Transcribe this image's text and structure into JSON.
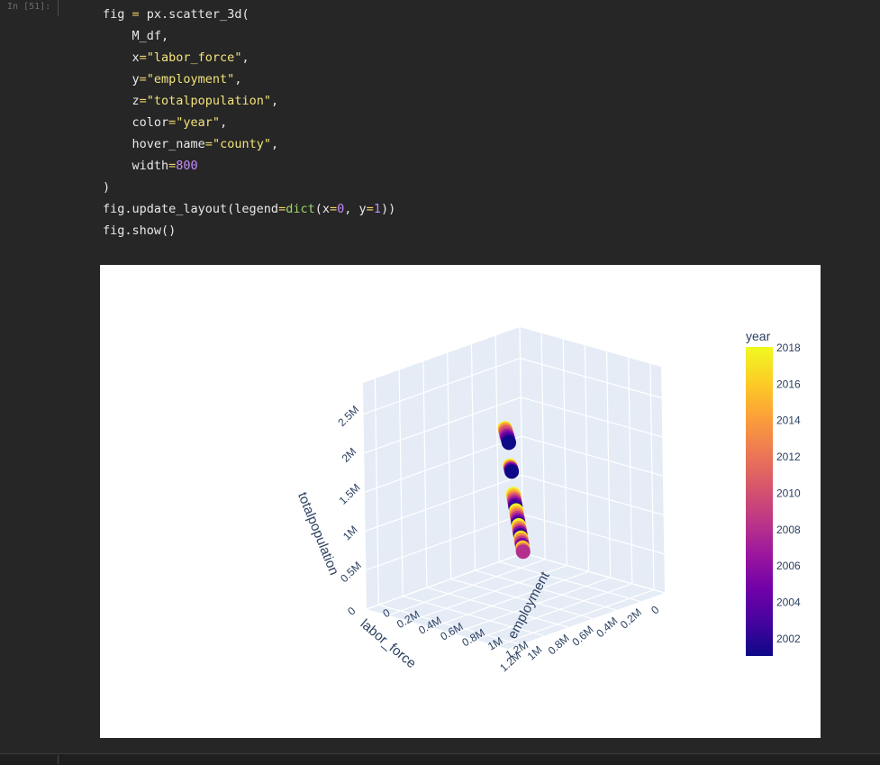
{
  "cell": {
    "prompt": "In [51]:",
    "code_lines": [
      [
        {
          "t": "fig ",
          "c": "kw"
        },
        {
          "t": "=",
          "c": "op"
        },
        {
          "t": " px.scatter_3d(",
          "c": "kw"
        }
      ],
      [
        {
          "t": "    M_df,",
          "c": "kw"
        }
      ],
      [
        {
          "t": "    x",
          "c": "kw"
        },
        {
          "t": "=",
          "c": "op"
        },
        {
          "t": "\"labor_force\"",
          "c": "str"
        },
        {
          "t": ",",
          "c": "kw"
        }
      ],
      [
        {
          "t": "    y",
          "c": "kw"
        },
        {
          "t": "=",
          "c": "op"
        },
        {
          "t": "\"employment\"",
          "c": "str"
        },
        {
          "t": ",",
          "c": "kw"
        }
      ],
      [
        {
          "t": "    z",
          "c": "kw"
        },
        {
          "t": "=",
          "c": "op"
        },
        {
          "t": "\"totalpopulation\"",
          "c": "str"
        },
        {
          "t": ",",
          "c": "kw"
        }
      ],
      [
        {
          "t": "    color",
          "c": "kw"
        },
        {
          "t": "=",
          "c": "op"
        },
        {
          "t": "\"year\"",
          "c": "str"
        },
        {
          "t": ",",
          "c": "kw"
        }
      ],
      [
        {
          "t": "    hover_name",
          "c": "kw"
        },
        {
          "t": "=",
          "c": "op"
        },
        {
          "t": "\"county\"",
          "c": "str"
        },
        {
          "t": ",",
          "c": "kw"
        }
      ],
      [
        {
          "t": "    width",
          "c": "kw"
        },
        {
          "t": "=",
          "c": "op"
        },
        {
          "t": "800",
          "c": "num"
        }
      ],
      [
        {
          "t": ")",
          "c": "kw"
        }
      ],
      [
        {
          "t": "fig.update_layout(legend",
          "c": "kw"
        },
        {
          "t": "=",
          "c": "op"
        },
        {
          "t": "dict",
          "c": "fn-dict"
        },
        {
          "t": "(x",
          "c": "kw"
        },
        {
          "t": "=",
          "c": "op"
        },
        {
          "t": "0",
          "c": "num"
        },
        {
          "t": ", y",
          "c": "kw"
        },
        {
          "t": "=",
          "c": "op"
        },
        {
          "t": "1",
          "c": "num"
        },
        {
          "t": "))",
          "c": "kw"
        }
      ],
      [
        {
          "t": "fig.show()",
          "c": "kw"
        }
      ]
    ]
  },
  "colors": {
    "notebook_bg": "#262626",
    "plot_bg": "#ffffff",
    "scene_bg": "#e5ecf6",
    "grid": "#ffffff",
    "axis_text": "#2a3f5f"
  },
  "chart_data": {
    "type": "scatter",
    "projection": "3d",
    "x_axis": {
      "label": "labor_force",
      "ticks": [
        "1.2M",
        "1M",
        "0.8M",
        "0.6M",
        "0.4M",
        "0.2M",
        "0"
      ]
    },
    "y_axis": {
      "label": "employment",
      "ticks": [
        "0",
        "0.2M",
        "0.4M",
        "0.6M",
        "0.8M",
        "1M",
        "1.2M"
      ]
    },
    "z_axis": {
      "label": "totalpopulation",
      "ticks": [
        "0",
        "0.5M",
        "1M",
        "1.5M",
        "2M",
        "2.5M"
      ]
    },
    "colorbar": {
      "title": "year",
      "ticks": [
        "2018",
        "2016",
        "2014",
        "2012",
        "2010",
        "2008",
        "2006",
        "2004",
        "2002"
      ],
      "range": [
        2001,
        2018
      ],
      "colorscale": [
        "#0d0887",
        "#46039f",
        "#7201a8",
        "#9c179e",
        "#bd3786",
        "#d8576b",
        "#ed7953",
        "#fb9f3a",
        "#fdca26",
        "#f0f921"
      ]
    },
    "points": [
      {
        "x": 1.27,
        "y": 1.27,
        "z": 2.8,
        "year": 2018
      },
      {
        "x": 1.25,
        "y": 1.25,
        "z": 2.77,
        "year": 2016
      },
      {
        "x": 1.23,
        "y": 1.23,
        "z": 2.74,
        "year": 2014
      },
      {
        "x": 1.21,
        "y": 1.21,
        "z": 2.7,
        "year": 2012
      },
      {
        "x": 1.19,
        "y": 1.19,
        "z": 2.67,
        "year": 2011
      },
      {
        "x": 1.17,
        "y": 1.17,
        "z": 2.64,
        "year": 2010
      },
      {
        "x": 1.15,
        "y": 1.15,
        "z": 2.6,
        "year": 2009
      },
      {
        "x": 1.13,
        "y": 1.13,
        "z": 2.57,
        "year": 2008
      },
      {
        "x": 1.1,
        "y": 1.1,
        "z": 2.54,
        "year": 2007
      },
      {
        "x": 1.08,
        "y": 1.08,
        "z": 2.5,
        "year": 2006
      },
      {
        "x": 1.06,
        "y": 1.06,
        "z": 2.47,
        "year": 2005
      },
      {
        "x": 1.04,
        "y": 1.04,
        "z": 2.44,
        "year": 2004
      },
      {
        "x": 1.02,
        "y": 1.02,
        "z": 2.4,
        "year": 2003
      },
      {
        "x": 1.0,
        "y": 1.0,
        "z": 2.37,
        "year": 2002
      },
      {
        "x": 0.98,
        "y": 0.98,
        "z": 2.34,
        "year": 2001
      },
      {
        "x": 0.93,
        "y": 0.93,
        "z": 2.0,
        "year": 2018
      },
      {
        "x": 0.9,
        "y": 0.9,
        "z": 1.96,
        "year": 2016
      },
      {
        "x": 0.88,
        "y": 0.88,
        "z": 1.93,
        "year": 2013
      },
      {
        "x": 0.86,
        "y": 0.86,
        "z": 1.9,
        "year": 2010
      },
      {
        "x": 0.84,
        "y": 0.84,
        "z": 1.87,
        "year": 2007
      },
      {
        "x": 0.82,
        "y": 0.82,
        "z": 1.84,
        "year": 2004
      },
      {
        "x": 0.8,
        "y": 0.8,
        "z": 1.8,
        "year": 2001
      },
      {
        "x": 0.7,
        "y": 0.7,
        "z": 1.42,
        "year": 2018
      },
      {
        "x": 0.68,
        "y": 0.68,
        "z": 1.38,
        "year": 2016
      },
      {
        "x": 0.66,
        "y": 0.66,
        "z": 1.34,
        "year": 2014
      },
      {
        "x": 0.64,
        "y": 0.64,
        "z": 1.3,
        "year": 2012
      },
      {
        "x": 0.62,
        "y": 0.62,
        "z": 1.26,
        "year": 2010
      },
      {
        "x": 0.6,
        "y": 0.6,
        "z": 1.22,
        "year": 2008
      },
      {
        "x": 0.58,
        "y": 0.58,
        "z": 1.18,
        "year": 2006
      },
      {
        "x": 0.56,
        "y": 0.56,
        "z": 1.14,
        "year": 2004
      },
      {
        "x": 0.54,
        "y": 0.54,
        "z": 1.1,
        "year": 2002
      },
      {
        "x": 0.5,
        "y": 0.5,
        "z": 1.02,
        "year": 2018
      },
      {
        "x": 0.47,
        "y": 0.47,
        "z": 0.96,
        "year": 2015
      },
      {
        "x": 0.44,
        "y": 0.44,
        "z": 0.9,
        "year": 2012
      },
      {
        "x": 0.41,
        "y": 0.41,
        "z": 0.84,
        "year": 2009
      },
      {
        "x": 0.38,
        "y": 0.38,
        "z": 0.78,
        "year": 2006
      },
      {
        "x": 0.35,
        "y": 0.35,
        "z": 0.72,
        "year": 2003
      },
      {
        "x": 0.32,
        "y": 0.32,
        "z": 0.66,
        "year": 2018
      },
      {
        "x": 0.29,
        "y": 0.29,
        "z": 0.6,
        "year": 2014
      },
      {
        "x": 0.26,
        "y": 0.26,
        "z": 0.54,
        "year": 2010
      },
      {
        "x": 0.23,
        "y": 0.23,
        "z": 0.48,
        "year": 2006
      },
      {
        "x": 0.2,
        "y": 0.2,
        "z": 0.42,
        "year": 2002
      },
      {
        "x": 0.17,
        "y": 0.17,
        "z": 0.36,
        "year": 2017
      },
      {
        "x": 0.14,
        "y": 0.14,
        "z": 0.3,
        "year": 2013
      },
      {
        "x": 0.11,
        "y": 0.11,
        "z": 0.24,
        "year": 2009
      },
      {
        "x": 0.08,
        "y": 0.08,
        "z": 0.18,
        "year": 2005
      },
      {
        "x": 0.05,
        "y": 0.05,
        "z": 0.12,
        "year": 2016
      },
      {
        "x": 0.03,
        "y": 0.03,
        "z": 0.07,
        "year": 2012
      },
      {
        "x": 0.01,
        "y": 0.01,
        "z": 0.03,
        "year": 2008
      }
    ]
  }
}
